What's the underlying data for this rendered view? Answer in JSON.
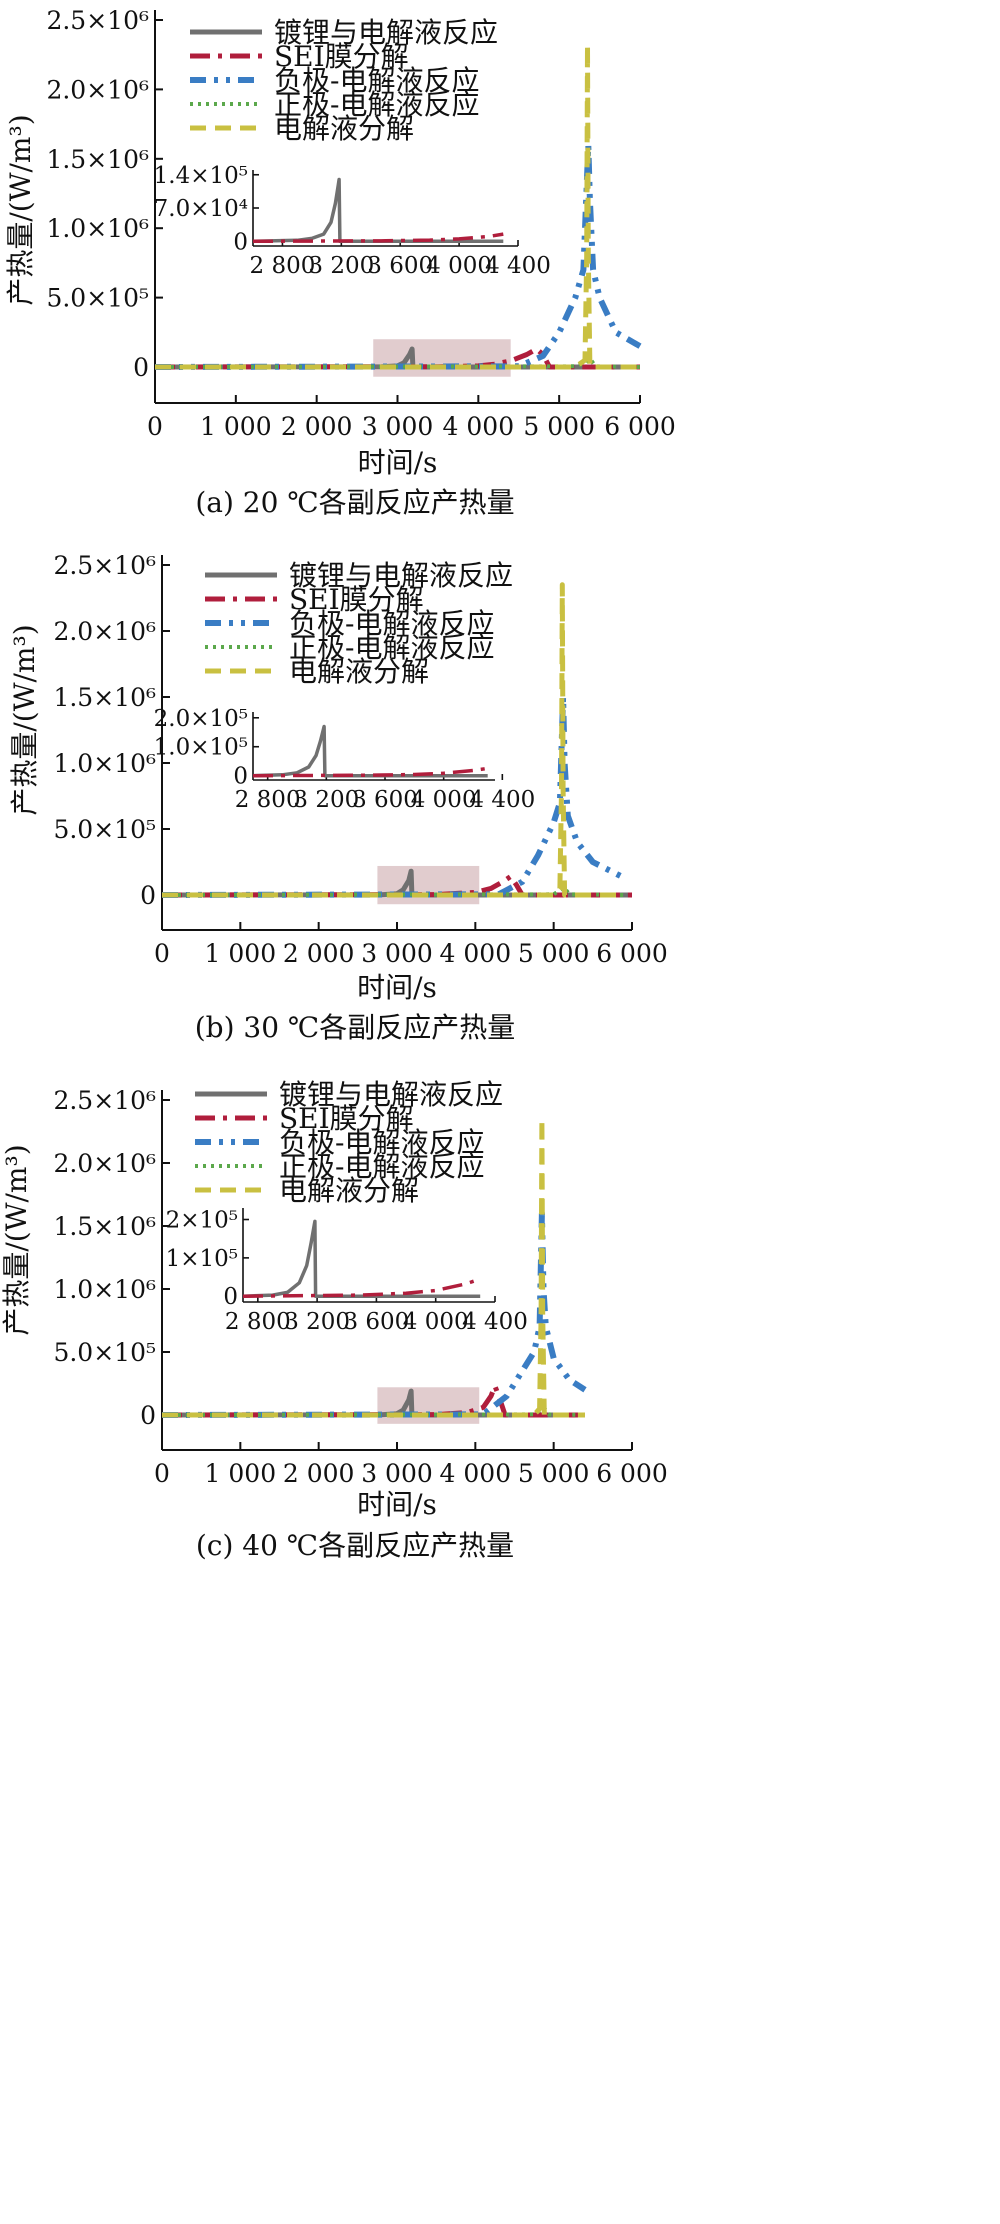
{
  "figure": {
    "legend_entries": [
      "镀锂与电解液反应",
      "SEI膜分解",
      "负极-电解液反应",
      "正极-电解液反应",
      "电解液分解"
    ],
    "series_colors": {
      "镀锂与电解液反应": "#707070",
      "SEI膜分解": "#B01E3C",
      "负极-电解液反应": "#3A7DC4",
      "正极-电解液反应": "#5BA84B",
      "电解液分解": "#C9C041"
    },
    "highlight_color": "#C9A3A6"
  },
  "chart_data": [
    {
      "type": "line",
      "caption": "(a) 20 ℃各副反应产热量",
      "xlabel": "时间/s",
      "ylabel": "产热量/(W/m³)",
      "xlim": [
        0,
        6000
      ],
      "ylim": [
        -300000.0,
        2500000.0
      ],
      "xticks": [
        0,
        1000,
        2000,
        3000,
        4000,
        5000,
        6000
      ],
      "xtick_labels": [
        "0",
        "1 000",
        "2 000",
        "3 000",
        "4 000",
        "5 000",
        "6 000"
      ],
      "yticks": [
        0,
        500000,
        1000000,
        1500000,
        2000000,
        2500000
      ],
      "ytick_labels": [
        "0",
        "5.0×10⁵",
        "1.0×10⁶",
        "1.5×10⁶",
        "2.0×10⁶",
        "2.5×10⁶"
      ],
      "highlight_region": {
        "x": [
          2700,
          4400
        ],
        "y": [
          -70000,
          200000
        ]
      },
      "legend_position": "top-left",
      "series": [
        {
          "name": "镀锂与电解液反应",
          "x": [
            0,
            2800,
            3000,
            3080,
            3150,
            3180,
            3190,
            3200,
            6000
          ],
          "y": [
            0,
            2000,
            8000,
            30000,
            90000,
            130000,
            0,
            0,
            0
          ]
        },
        {
          "name": "SEI膜分解",
          "x": [
            0,
            3500,
            4000,
            4200,
            4400,
            4600,
            4720,
            4800,
            4880,
            6000
          ],
          "y": [
            0,
            2000,
            8000,
            20000,
            45000,
            90000,
            130000,
            90000,
            0,
            0
          ]
        },
        {
          "name": "负极-电解液反应",
          "x": [
            0,
            4500,
            4800,
            5000,
            5200,
            5300,
            5360,
            5380,
            5420,
            5500,
            5700,
            6000
          ],
          "y": [
            0,
            5000,
            80000,
            250000,
            500000,
            700000,
            1600000,
            1200000,
            700000,
            500000,
            250000,
            150000
          ]
        },
        {
          "name": "正极-电解液反应",
          "x": [
            0,
            5200,
            5330,
            5380,
            5450,
            6000
          ],
          "y": [
            0,
            5000,
            30000,
            60000,
            5000,
            0
          ]
        },
        {
          "name": "电解液分解",
          "x": [
            0,
            5200,
            5320,
            5340,
            5350,
            5360,
            5380,
            6000
          ],
          "y": [
            0,
            0,
            50000,
            800000,
            2320000,
            800000,
            0,
            0
          ]
        }
      ],
      "inset": {
        "xlim": [
          2600,
          4400
        ],
        "ylim": [
          -10000,
          150000.0
        ],
        "xticks": [
          2800,
          3200,
          3600,
          4000,
          4400
        ],
        "xtick_labels": [
          "2 800",
          "3 200",
          "3 600",
          "4 000",
          "4 400"
        ],
        "yticks": [
          0,
          70000,
          140000
        ],
        "ytick_labels": [
          "0",
          "7.0×10⁴",
          "1.4×10⁵"
        ],
        "series": [
          {
            "name": "镀锂与电解液反应",
            "x": [
              2600,
              2900,
              3000,
              3080,
              3130,
              3160,
              3180,
              3185,
              3190,
              4300
            ],
            "y": [
              0,
              2000,
              6000,
              15000,
              40000,
              80000,
              120000,
              130000,
              0,
              0
            ]
          },
          {
            "name": "SEI膜分解",
            "x": [
              2600,
              3500,
              3800,
              4000,
              4200,
              4300
            ],
            "y": [
              0,
              1000,
              2500,
              5000,
              10000,
              15000
            ]
          }
        ]
      }
    },
    {
      "type": "line",
      "caption": "(b) 30 ℃各副反应产热量",
      "xlabel": "时间/s",
      "ylabel": "产热量/(W/m³)",
      "xlim": [
        0,
        6000
      ],
      "ylim": [
        -300000.0,
        2500000.0
      ],
      "xticks": [
        0,
        1000,
        2000,
        3000,
        4000,
        5000,
        6000
      ],
      "xtick_labels": [
        "0",
        "1 000",
        "2 000",
        "3 000",
        "4 000",
        "5 000",
        "6 000"
      ],
      "yticks": [
        0,
        500000,
        1000000,
        1500000,
        2000000,
        2500000
      ],
      "ytick_labels": [
        "0",
        "5.0×10⁵",
        "1.0×10⁶",
        "1.5×10⁶",
        "2.0×10⁶",
        "2.5×10⁶"
      ],
      "highlight_region": {
        "x": [
          2750,
          4050
        ],
        "y": [
          -70000,
          220000
        ]
      },
      "legend_position": "top-left",
      "series": [
        {
          "name": "镀锂与电解液反应",
          "x": [
            0,
            2800,
            3000,
            3080,
            3150,
            3180,
            3190,
            3200,
            6000
          ],
          "y": [
            0,
            2000,
            10000,
            40000,
            110000,
            180000,
            0,
            0,
            0
          ]
        },
        {
          "name": "SEI膜分解",
          "x": [
            0,
            3500,
            4000,
            4200,
            4350,
            4450,
            4520,
            4600,
            6000
          ],
          "y": [
            0,
            3000,
            20000,
            50000,
            100000,
            140000,
            80000,
            0,
            0
          ]
        },
        {
          "name": "负极-电解液反应",
          "x": [
            0,
            4300,
            4600,
            4800,
            5000,
            5080,
            5120,
            5140,
            5180,
            5300,
            5500,
            5900
          ],
          "y": [
            0,
            5000,
            100000,
            300000,
            550000,
            700000,
            1500000,
            1000000,
            600000,
            400000,
            250000,
            130000
          ]
        },
        {
          "name": "正极-电解液反应",
          "x": [
            0,
            5000,
            5090,
            5130,
            5200,
            5900
          ],
          "y": [
            0,
            5000,
            40000,
            60000,
            5000,
            0
          ]
        },
        {
          "name": "电解液分解",
          "x": [
            0,
            5000,
            5080,
            5100,
            5110,
            5120,
            5140,
            5900
          ],
          "y": [
            0,
            0,
            50000,
            800000,
            2350000,
            800000,
            0,
            0
          ]
        }
      ],
      "inset": {
        "xlim": [
          2700,
          4350
        ],
        "ylim": [
          -15000,
          220000.0
        ],
        "xticks": [
          2800,
          3200,
          3600,
          4000,
          4400
        ],
        "xtick_labels": [
          "2 800",
          "3 200",
          "3 600",
          "4 000",
          "4 400"
        ],
        "yticks": [
          0,
          100000,
          200000
        ],
        "ytick_labels": [
          "0",
          "1.0×10⁵",
          "2.0×10⁵"
        ],
        "series": [
          {
            "name": "镀锂与电解液反应",
            "x": [
              2700,
              2900,
              3000,
              3080,
              3130,
              3160,
              3180,
              3185,
              3190,
              4300
            ],
            "y": [
              0,
              3000,
              10000,
              30000,
              70000,
              120000,
              160000,
              170000,
              0,
              0
            ]
          },
          {
            "name": "SEI膜分解",
            "x": [
              2700,
              3500,
              3800,
              4000,
              4200,
              4300
            ],
            "y": [
              0,
              1500,
              4000,
              8000,
              18000,
              25000
            ]
          }
        ]
      }
    },
    {
      "type": "line",
      "caption": "(c) 40 ℃各副反应产热量",
      "xlabel": "时间/s",
      "ylabel": "产热量/(W/m³)",
      "xlim": [
        0,
        6000
      ],
      "ylim": [
        -300000.0,
        2500000.0
      ],
      "xticks": [
        0,
        1000,
        2000,
        3000,
        4000,
        5000,
        6000
      ],
      "xtick_labels": [
        "0",
        "1 000",
        "2 000",
        "3 000",
        "4 000",
        "5 000",
        "6 000"
      ],
      "yticks": [
        0,
        500000,
        1000000,
        1500000,
        2000000,
        2500000
      ],
      "ytick_labels": [
        "0",
        "5.0×10⁵",
        "1.0×10⁶",
        "1.5×10⁶",
        "2.0×10⁶",
        "2.5×10⁶"
      ],
      "highlight_region": {
        "x": [
          2750,
          4050
        ],
        "y": [
          -70000,
          220000
        ]
      },
      "legend_position": "top-left",
      "series": [
        {
          "name": "镀锂与电解液反应",
          "x": [
            0,
            2800,
            3000,
            3080,
            3150,
            3180,
            3190,
            3200,
            5400
          ],
          "y": [
            0,
            2000,
            10000,
            40000,
            120000,
            190000,
            0,
            0,
            0
          ]
        },
        {
          "name": "SEI膜分解",
          "x": [
            0,
            3500,
            3900,
            4100,
            4200,
            4250,
            4300,
            4380,
            5400
          ],
          "y": [
            0,
            3000,
            20000,
            60000,
            150000,
            230000,
            150000,
            0,
            0
          ]
        },
        {
          "name": "负极-电解液反应",
          "x": [
            0,
            4100,
            4400,
            4600,
            4750,
            4820,
            4850,
            4870,
            4900,
            5000,
            5200,
            5400
          ],
          "y": [
            0,
            5000,
            150000,
            350000,
            500000,
            700000,
            1600000,
            1000000,
            700000,
            450000,
            280000,
            200000
          ]
        },
        {
          "name": "正极-电解液反应",
          "x": [
            0,
            4750,
            4830,
            4870,
            4940,
            5400
          ],
          "y": [
            0,
            5000,
            40000,
            60000,
            5000,
            0
          ]
        },
        {
          "name": "电解液分解",
          "x": [
            0,
            4750,
            4820,
            4840,
            4850,
            4860,
            4880,
            5400
          ],
          "y": [
            0,
            0,
            50000,
            800000,
            2350000,
            800000,
            0,
            0
          ]
        }
      ],
      "inset": {
        "xlim": [
          2700,
          4400
        ],
        "ylim": [
          -15000,
          230000.0
        ],
        "xticks": [
          2800,
          3200,
          3600,
          4000,
          4400
        ],
        "xtick_labels": [
          "2 800",
          "3 200",
          "3 600",
          "4 000",
          "4 400"
        ],
        "yticks": [
          0,
          100000,
          200000
        ],
        "ytick_labels": [
          "0",
          "1×10⁵",
          "2×10⁵"
        ],
        "series": [
          {
            "name": "镀锂与电解液反应",
            "x": [
              2700,
              2900,
              3000,
              3080,
              3130,
              3160,
              3180,
              3185,
              3190,
              4300
            ],
            "y": [
              0,
              3000,
              10000,
              35000,
              80000,
              140000,
              185000,
              195000,
              0,
              0
            ]
          },
          {
            "name": "SEI膜分解",
            "x": [
              2700,
              3500,
              3800,
              4000,
              4200,
              4300
            ],
            "y": [
              0,
              3000,
              8000,
              15000,
              32000,
              45000
            ]
          }
        ]
      }
    }
  ]
}
